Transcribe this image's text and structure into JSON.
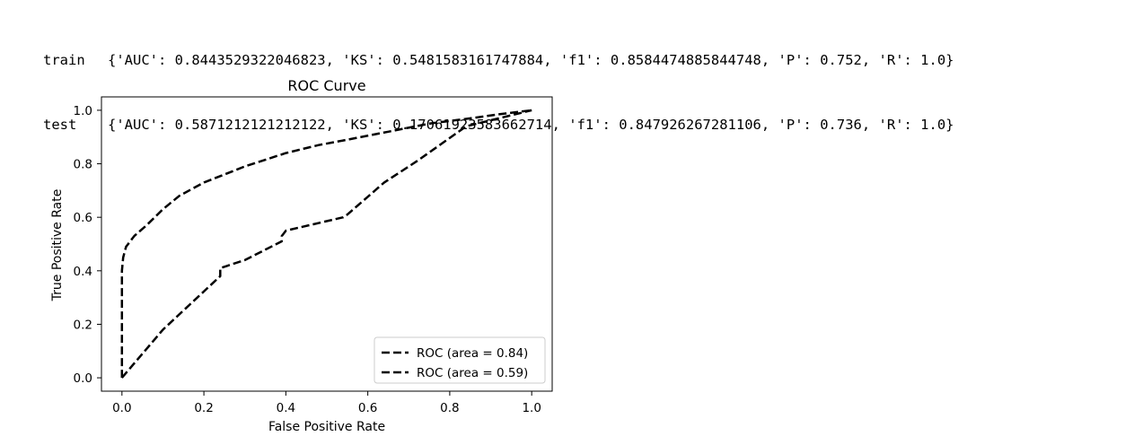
{
  "output": {
    "lines": [
      {
        "label": "train",
        "text": "{'AUC': 0.8443529322046823, 'KS': 0.5481583161747884, 'f1': 0.8584474885844748, 'P': 0.752, 'R': 1.0}"
      },
      {
        "label": "test",
        "text": "{'AUC': 0.5871212121212122, 'KS': 0.17061923583662714, 'f1': 0.847926267281106, 'P': 0.736, 'R': 1.0}"
      }
    ]
  },
  "chart_data": {
    "type": "line",
    "title": "ROC Curve",
    "xlabel": "False Positive Rate",
    "ylabel": "True Positive Rate",
    "xlim": [
      -0.05,
      1.05
    ],
    "ylim": [
      -0.05,
      1.05
    ],
    "xticks": [
      "0.0",
      "0.2",
      "0.4",
      "0.6",
      "0.8",
      "1.0"
    ],
    "xtick_values": [
      0,
      0.2,
      0.4,
      0.6,
      0.8,
      1.0
    ],
    "yticks": [
      "0.0",
      "0.2",
      "0.4",
      "0.6",
      "0.8",
      "1.0"
    ],
    "ytick_values": [
      0,
      0.2,
      0.4,
      0.6,
      0.8,
      1.0
    ],
    "grid": false,
    "legend_position": "lower-right",
    "line_color": "#000000",
    "line_style": "dashed",
    "series": [
      {
        "name": "ROC (area = 0.84)",
        "x": [
          0.0,
          0.0,
          0.003,
          0.01,
          0.03,
          0.06,
          0.1,
          0.14,
          0.2,
          0.25,
          0.3,
          0.4,
          0.48,
          0.55,
          0.65,
          0.75,
          0.85,
          0.92,
          1.0
        ],
        "y": [
          0.0,
          0.4,
          0.45,
          0.49,
          0.53,
          0.57,
          0.63,
          0.68,
          0.73,
          0.76,
          0.79,
          0.84,
          0.87,
          0.89,
          0.92,
          0.95,
          0.97,
          0.985,
          1.0
        ]
      },
      {
        "name": "ROC (area = 0.59)",
        "x": [
          0.0,
          0.1,
          0.24,
          0.24,
          0.3,
          0.39,
          0.39,
          0.4,
          0.54,
          0.55,
          0.64,
          0.72,
          0.84,
          1.0
        ],
        "y": [
          0.0,
          0.18,
          0.38,
          0.41,
          0.44,
          0.51,
          0.53,
          0.55,
          0.6,
          0.61,
          0.73,
          0.81,
          0.94,
          1.0
        ]
      }
    ]
  }
}
